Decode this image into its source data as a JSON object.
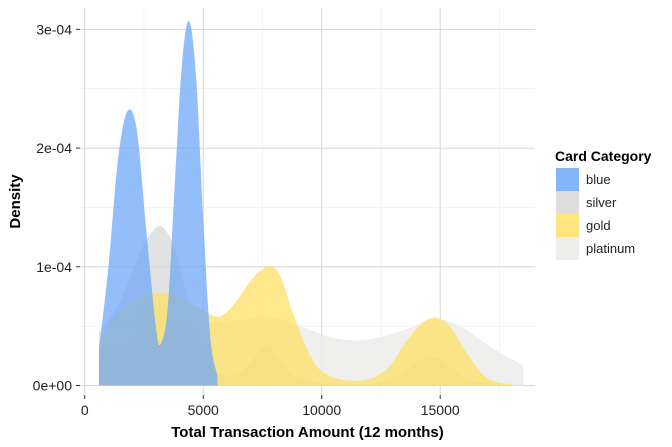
{
  "chart_data": {
    "type": "area",
    "title": "",
    "xlabel": "Total Transaction Amount (12 months)",
    "ylabel": "Density",
    "xlim": [
      -200,
      19000
    ],
    "ylim": [
      -8e-06,
      0.000318
    ],
    "x_ticks": [
      {
        "value": 0,
        "label": "0"
      },
      {
        "value": 5000,
        "label": "5000"
      },
      {
        "value": 10000,
        "label": "10000"
      },
      {
        "value": 15000,
        "label": "15000"
      }
    ],
    "y_ticks": [
      {
        "value": 0,
        "label": "0e+00"
      },
      {
        "value": 0.0001,
        "label": "1e-04"
      },
      {
        "value": 0.0002,
        "label": "2e-04"
      },
      {
        "value": 0.0003,
        "label": "3e-04"
      }
    ],
    "grid": true,
    "legend": {
      "title": "Card Category",
      "position": "right"
    },
    "series": [
      {
        "name": "blue",
        "color": "#6fa8f7",
        "opacity": 0.75,
        "points": [
          [
            600,
            3e-05
          ],
          [
            1000,
            0.0001
          ],
          [
            1400,
            0.00019
          ],
          [
            1800,
            0.000231
          ],
          [
            2200,
            0.000215
          ],
          [
            2600,
            0.00013
          ],
          [
            3000,
            5e-05
          ],
          [
            3200,
            3.5e-05
          ],
          [
            3500,
            6.5e-05
          ],
          [
            3800,
            0.00017
          ],
          [
            4100,
            0.00027
          ],
          [
            4400,
            0.000307
          ],
          [
            4700,
            0.00026
          ],
          [
            5000,
            0.00014
          ],
          [
            5300,
            4e-05
          ],
          [
            5600,
            8.5e-06
          ]
        ]
      },
      {
        "name": "silver",
        "color": "#d5d5d5",
        "opacity": 0.7,
        "points": [
          [
            600,
            4.5e-05
          ],
          [
            1200,
            6e-05
          ],
          [
            1800,
            8.5e-05
          ],
          [
            2400,
            0.000115
          ],
          [
            3000,
            0.000133
          ],
          [
            3400,
            0.000131
          ],
          [
            3800,
            0.000115
          ],
          [
            4200,
            8.5e-05
          ],
          [
            4600,
            5.5e-05
          ],
          [
            5000,
            3e-05
          ],
          [
            5500,
            1.2e-05
          ],
          [
            6000,
            8e-06
          ],
          [
            6500,
            1e-05
          ],
          [
            7000,
            2e-05
          ],
          [
            7500,
            3.2e-05
          ],
          [
            7800,
            3.3e-05
          ],
          [
            8200,
            2.2e-05
          ],
          [
            8800,
            8e-06
          ],
          [
            10000,
            2e-06
          ],
          [
            11500,
            1e-06
          ],
          [
            12500,
            3e-06
          ],
          [
            13500,
            1.2e-05
          ],
          [
            14200,
            2.2e-05
          ],
          [
            14700,
            2.4e-05
          ],
          [
            15300,
            1.8e-05
          ],
          [
            16000,
            7e-06
          ],
          [
            17000,
            1.5e-06
          ],
          [
            18000,
            0
          ]
        ]
      },
      {
        "name": "gold",
        "color": "#ffe066",
        "opacity": 0.75,
        "points": [
          [
            600,
            3.5e-05
          ],
          [
            1200,
            5.5e-05
          ],
          [
            2000,
            7e-05
          ],
          [
            3000,
            7.8e-05
          ],
          [
            4000,
            7.4e-05
          ],
          [
            5000,
            6.3e-05
          ],
          [
            5600,
            5.8e-05
          ],
          [
            6000,
            6.2e-05
          ],
          [
            6500,
            7.4e-05
          ],
          [
            7000,
            8.8e-05
          ],
          [
            7500,
            9.8e-05
          ],
          [
            7900,
            0.0001
          ],
          [
            8300,
            9e-05
          ],
          [
            8800,
            6e-05
          ],
          [
            9400,
            3e-05
          ],
          [
            10000,
            1.2e-05
          ],
          [
            11000,
            4.5e-06
          ],
          [
            12000,
            5.5e-06
          ],
          [
            12800,
            1.5e-05
          ],
          [
            13500,
            3.5e-05
          ],
          [
            14200,
            5.2e-05
          ],
          [
            14800,
            5.7e-05
          ],
          [
            15400,
            5e-05
          ],
          [
            16200,
            2.5e-05
          ],
          [
            17000,
            6e-06
          ],
          [
            18000,
            1e-06
          ]
        ]
      },
      {
        "name": "platinum",
        "color": "#ebebea",
        "opacity": 0.8,
        "points": [
          [
            600,
            2.7e-05
          ],
          [
            1500,
            3.3e-05
          ],
          [
            2500,
            4e-05
          ],
          [
            3500,
            4.6e-05
          ],
          [
            4500,
            5.2e-05
          ],
          [
            5500,
            5.4e-05
          ],
          [
            6500,
            5.5e-05
          ],
          [
            7500,
            5.8e-05
          ],
          [
            8500,
            5.4e-05
          ],
          [
            9500,
            4.7e-05
          ],
          [
            10500,
            4e-05
          ],
          [
            11500,
            3.8e-05
          ],
          [
            12500,
            4.1e-05
          ],
          [
            13500,
            4.7e-05
          ],
          [
            14500,
            5.5e-05
          ],
          [
            15200,
            5.5e-05
          ],
          [
            16000,
            4.8e-05
          ],
          [
            16800,
            3.7e-05
          ],
          [
            17500,
            2.8e-05
          ],
          [
            18500,
            1.7e-05
          ]
        ]
      }
    ]
  }
}
